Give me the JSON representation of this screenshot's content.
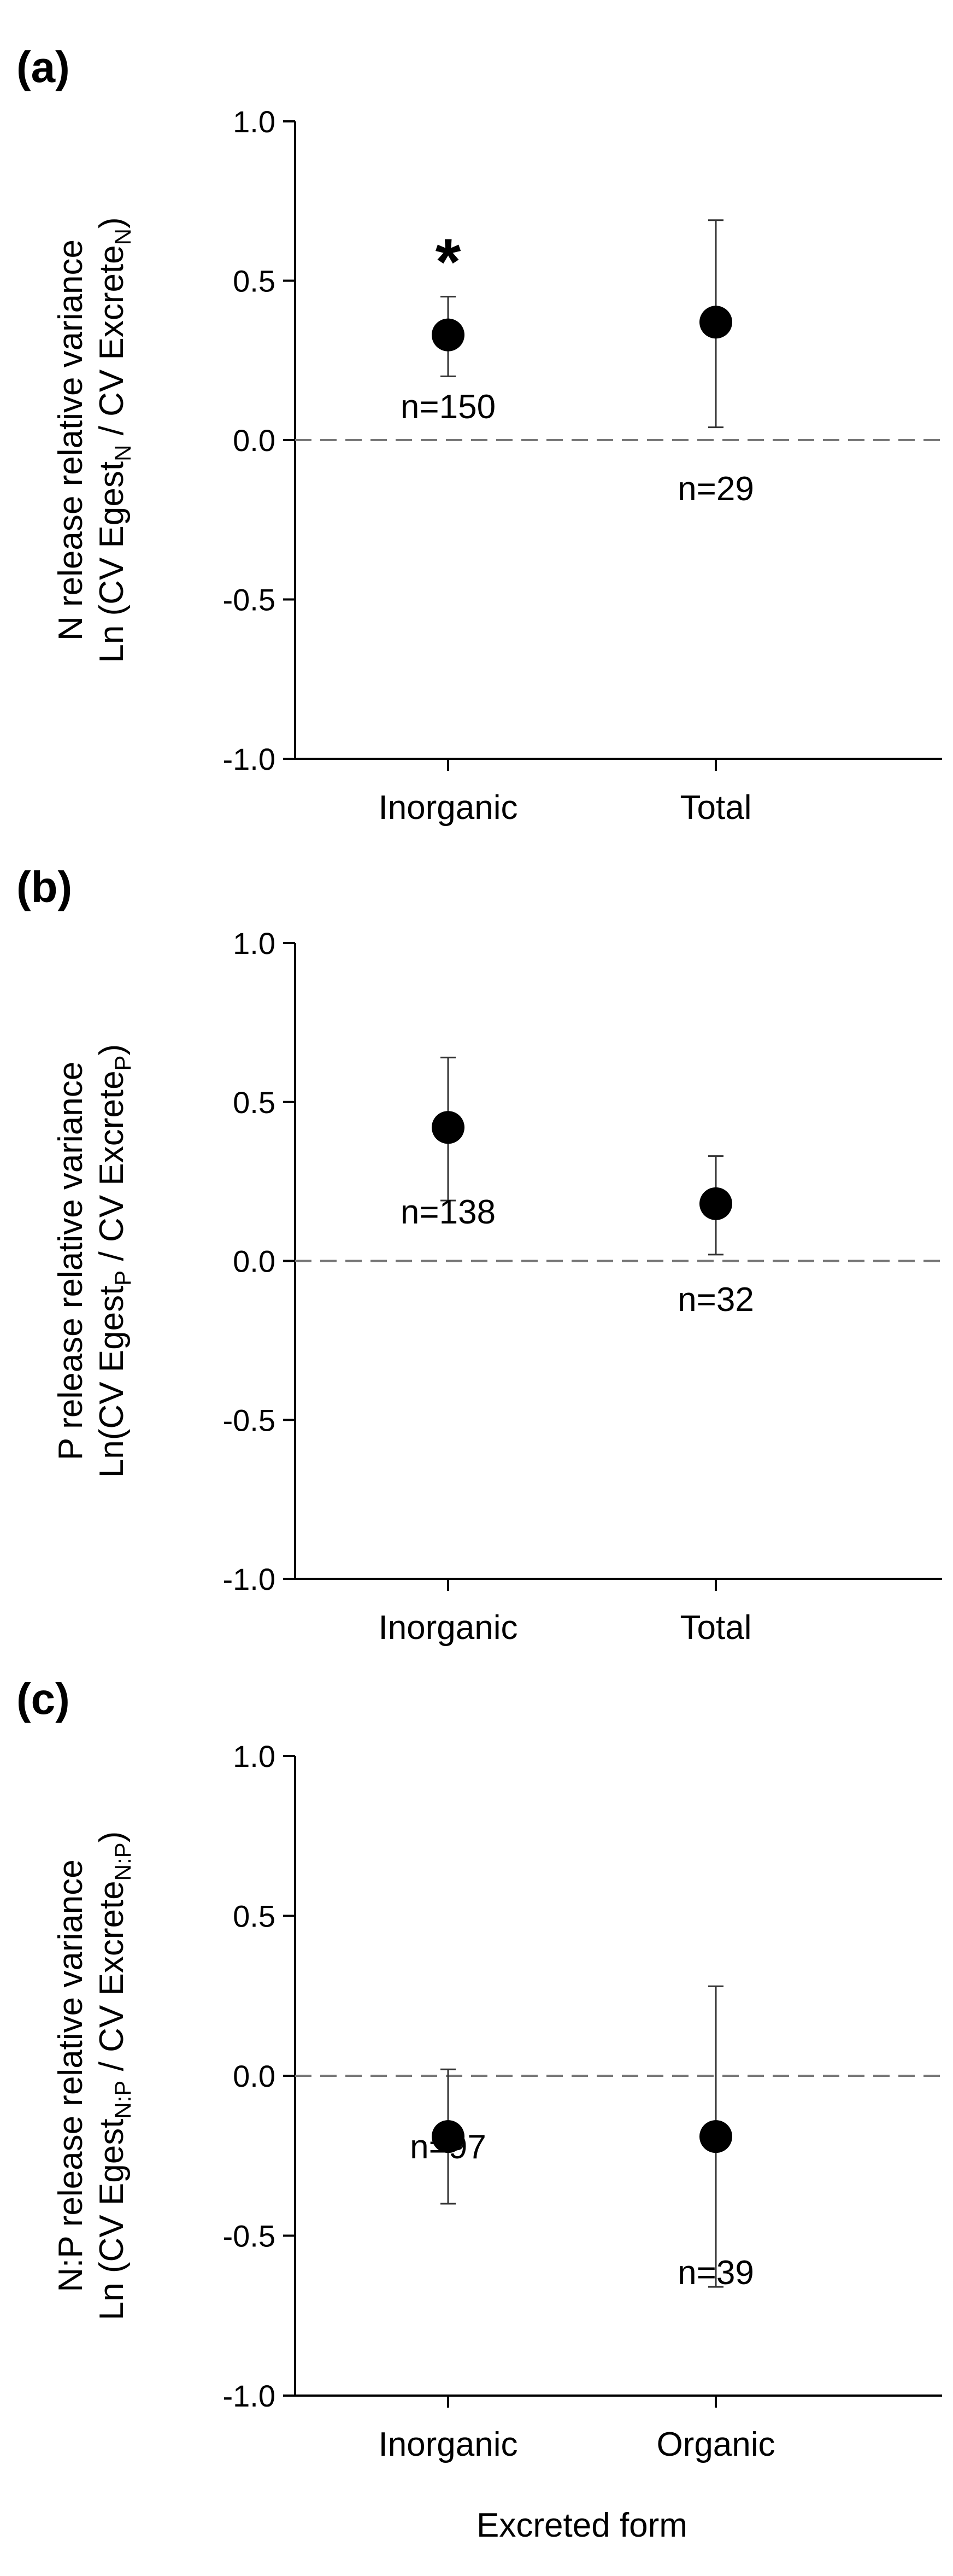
{
  "chart_data": [
    {
      "type": "scatter",
      "panel_label": "(a)",
      "ylabel_line1": "N release relative variance",
      "ylabel_line2": {
        "a": "Ln (CV Egest",
        "sub1": "N",
        "b": " / CV Excrete",
        "sub2": "N",
        "c": ")"
      },
      "xlabel": "",
      "ylim": [
        -1.0,
        1.0
      ],
      "yticks": [
        "1.0",
        "0.5",
        "0.0",
        "-0.5",
        "-1.0"
      ],
      "ytick_values": [
        1.0,
        0.5,
        0.0,
        -0.5,
        -1.0
      ],
      "reference_line": 0.0,
      "categories": [
        "Inorganic",
        "Total"
      ],
      "values": [
        0.33,
        0.37
      ],
      "error_low": [
        0.2,
        0.04
      ],
      "error_high": [
        0.45,
        0.69
      ],
      "n_labels": [
        "n=150",
        "n=29"
      ],
      "significance": [
        "*",
        ""
      ]
    },
    {
      "type": "scatter",
      "panel_label": "(b)",
      "ylabel_line1": "P release relative variance",
      "ylabel_line2": {
        "a": "Ln(CV Egest",
        "sub1": "P",
        "b": " / CV Excrete",
        "sub2": "P",
        "c": ")"
      },
      "xlabel": "",
      "ylim": [
        -1.0,
        1.0
      ],
      "yticks": [
        "1.0",
        "0.5",
        "0.0",
        "-0.5",
        "-1.0"
      ],
      "ytick_values": [
        1.0,
        0.5,
        0.0,
        -0.5,
        -1.0
      ],
      "reference_line": 0.0,
      "categories": [
        "Inorganic",
        "Total"
      ],
      "values": [
        0.42,
        0.18
      ],
      "error_low": [
        0.19,
        0.02
      ],
      "error_high": [
        0.64,
        0.33
      ],
      "n_labels": [
        "n=138",
        "n=32"
      ],
      "significance": [
        "",
        ""
      ]
    },
    {
      "type": "scatter",
      "panel_label": "(c)",
      "ylabel_line1": "N:P release relative variance",
      "ylabel_line2": {
        "a": "Ln (CV Egest",
        "sub1": "N:P",
        "b": " / CV Excrete",
        "sub2": "N:P",
        "c": ")"
      },
      "xlabel": "Excreted form",
      "ylim": [
        -1.0,
        1.0
      ],
      "yticks": [
        "1.0",
        "0.5",
        "0.0",
        "-0.5",
        "-1.0"
      ],
      "ytick_values": [
        1.0,
        0.5,
        0.0,
        -0.5,
        -1.0
      ],
      "reference_line": 0.0,
      "categories": [
        "Inorganic",
        "Organic"
      ],
      "values": [
        -0.19,
        -0.19
      ],
      "error_low": [
        -0.4,
        -0.66
      ],
      "error_high": [
        0.02,
        0.28
      ],
      "n_labels": [
        "n=97",
        "n=39"
      ],
      "significance": [
        "",
        ""
      ]
    }
  ]
}
